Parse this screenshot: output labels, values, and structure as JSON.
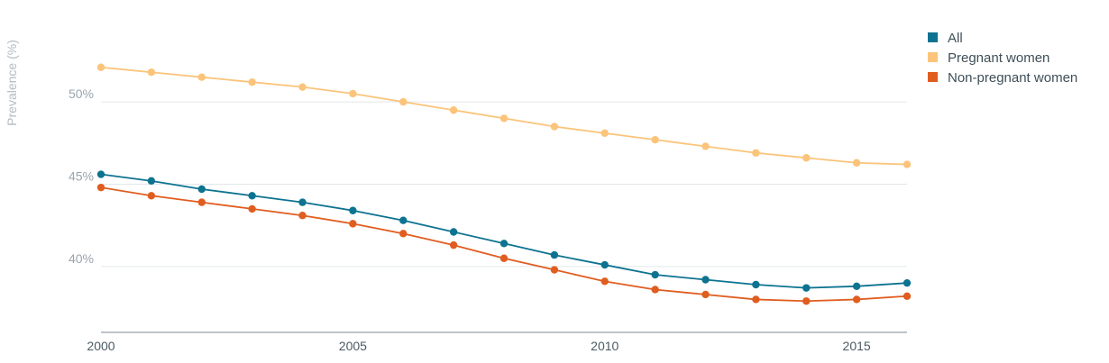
{
  "chart_data": {
    "type": "line",
    "title": "",
    "xlabel": "",
    "ylabel": "Prevalence (%)",
    "x": [
      2000,
      2001,
      2002,
      2003,
      2004,
      2005,
      2006,
      2007,
      2008,
      2009,
      2010,
      2011,
      2012,
      2013,
      2014,
      2015,
      2016
    ],
    "xlim": [
      2000,
      2016
    ],
    "ylim": [
      36,
      54
    ],
    "x_ticks": [
      {
        "value": 2000,
        "label": "2000"
      },
      {
        "value": 2005,
        "label": "2005"
      },
      {
        "value": 2010,
        "label": "2010"
      },
      {
        "value": 2015,
        "label": "2015"
      }
    ],
    "y_ticks": [
      {
        "value": 40,
        "label": "40%"
      },
      {
        "value": 45,
        "label": "45%"
      },
      {
        "value": 50,
        "label": "50%"
      }
    ],
    "grid": true,
    "legend_position": "top-right",
    "series": [
      {
        "name": "All",
        "color": "#0d7390",
        "values": [
          45.6,
          45.2,
          44.7,
          44.3,
          43.9,
          43.4,
          42.8,
          42.1,
          41.4,
          40.7,
          40.1,
          39.5,
          39.2,
          38.9,
          38.7,
          38.8,
          39.0
        ]
      },
      {
        "name": "Pregnant women",
        "color": "#fbc47a",
        "values": [
          52.1,
          51.8,
          51.5,
          51.2,
          50.9,
          50.5,
          50.0,
          49.5,
          49.0,
          48.5,
          48.1,
          47.7,
          47.3,
          46.9,
          46.6,
          46.3,
          46.2
        ]
      },
      {
        "name": "Non-pregnant women",
        "color": "#e05d20",
        "values": [
          44.8,
          44.3,
          43.9,
          43.5,
          43.1,
          42.6,
          42.0,
          41.3,
          40.5,
          39.8,
          39.1,
          38.6,
          38.3,
          38.0,
          37.9,
          38.0,
          38.2
        ]
      }
    ]
  }
}
